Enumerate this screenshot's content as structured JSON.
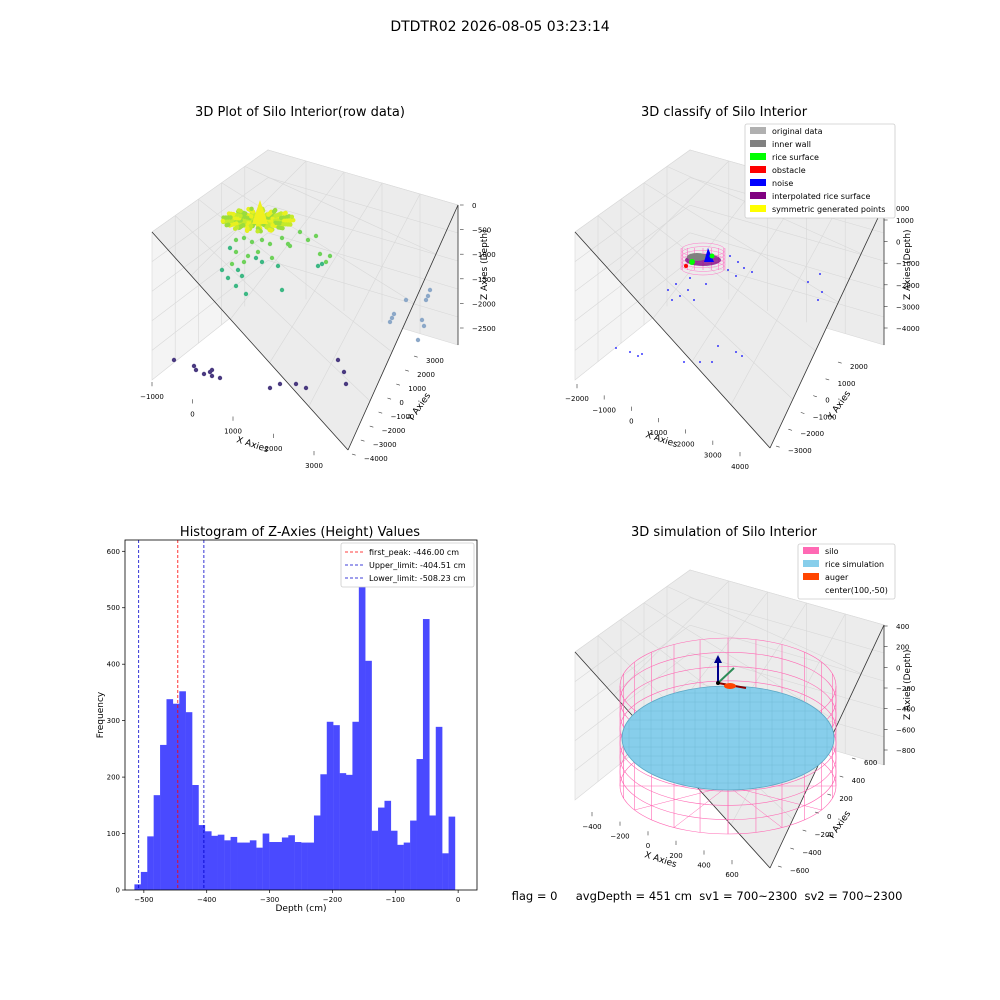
{
  "figure": {
    "suptitle": "DTDTR02 2026-08-05 03:23:14",
    "footer": "flag = 0     avgDepth = 451 cm  sv1 = 700~2300  sv2 = 700~2300"
  },
  "colors": {
    "hist_bar": "#4a4aff",
    "first_peak": "#ff0000",
    "limits": "#0000cc",
    "silo": "#ff69b4",
    "rice_simulation": "#87ceeb",
    "auger": "#ff4500",
    "original_data": "#b0b0b0",
    "inner_wall": "#808080",
    "rice_surface": "#00ff00",
    "obstacle": "#ff0000",
    "noise": "#0000ff",
    "interpolated_rice_surface": "#800080",
    "symmetric_generated_points": "#ffff00"
  },
  "chart_data": [
    {
      "type": "scatter",
      "title": "3D Plot of Silo Interior(row data)",
      "xlabel": "X Axies",
      "ylabel": "Y Axies",
      "zlabel": "Z Axies (Depth)",
      "xticks": [
        "−1000",
        "0",
        "1000",
        "2000",
        "3000"
      ],
      "yticks": [
        "−4000",
        "−3000",
        "−2000",
        "−1000",
        "0",
        "1000",
        "2000",
        "3000"
      ],
      "zticks": [
        "−2500",
        "−2000",
        "−1500",
        "−1000",
        "−500",
        "0"
      ]
    },
    {
      "type": "scatter",
      "title": "3D classify of Silo Interior",
      "xlabel": "X Axies",
      "ylabel": "Y Axies",
      "zlabel": "Z Axies (Depth)",
      "xticks": [
        "−2000",
        "−1000",
        "0",
        "1000",
        "2000",
        "3000",
        "4000"
      ],
      "yticks": [
        "−3000",
        "−2000",
        "−1000",
        "0",
        "1000",
        "2000"
      ],
      "zticks": [
        "−4000",
        "−3000",
        "−2000",
        "−1000",
        "0",
        "1000"
      ],
      "zticks_partial": [
        "000"
      ],
      "legend": {
        "placement": "top-right",
        "items": [
          {
            "label": "original data",
            "color": "#b0b0b0"
          },
          {
            "label": "inner wall",
            "color": "#808080"
          },
          {
            "label": "rice surface",
            "color": "#00ff00"
          },
          {
            "label": "obstacle",
            "color": "#ff0000"
          },
          {
            "label": "noise",
            "color": "#0000ff"
          },
          {
            "label": "interpolated rice surface",
            "color": "#800080"
          },
          {
            "label": "symmetric generated points",
            "color": "#ffff00"
          }
        ]
      }
    },
    {
      "type": "bar",
      "title": "Histogram of Z-Axies (Height) Values",
      "xlabel": "Depth (cm)",
      "ylabel": "Frequency",
      "xlim": [
        -530,
        30
      ],
      "ylim": [
        0,
        620
      ],
      "xticks": [
        -500,
        -400,
        -300,
        -200,
        -100,
        0
      ],
      "xtick_labels": [
        "−500",
        "−400",
        "−300",
        "−200",
        "−100",
        "0"
      ],
      "yticks": [
        0,
        100,
        200,
        300,
        400,
        500,
        600
      ],
      "bin_width": 10.2,
      "bin_start": -515,
      "values": [
        10,
        32,
        95,
        168,
        257,
        338,
        330,
        352,
        315,
        186,
        115,
        104,
        96,
        98,
        88,
        94,
        84,
        84,
        88,
        75,
        100,
        85,
        85,
        93,
        97,
        85,
        84,
        84,
        132,
        205,
        298,
        292,
        207,
        204,
        298,
        583,
        406,
        105,
        146,
        158,
        105,
        80,
        84,
        123,
        232,
        480,
        132,
        289,
        65,
        130
      ],
      "lines": [
        {
          "label": "first_peak: -446.00 cm",
          "x": -446.0,
          "color": "#ff0000"
        },
        {
          "label": "Upper_limit: -404.51 cm",
          "x": -404.51,
          "color": "#0000cc"
        },
        {
          "label": "Lower_limit: -508.23 cm",
          "x": -508.23,
          "color": "#0000cc"
        }
      ],
      "legend": {
        "placement": "top-right"
      }
    },
    {
      "type": "scatter",
      "title": "3D simulation of Silo Interior",
      "xlabel": "X Axies",
      "ylabel": "Y Axies",
      "zlabel": "Z Axies (Depth)",
      "xticks": [
        "−400",
        "−200",
        "0",
        "200",
        "400",
        "600"
      ],
      "yticks": [
        "−600",
        "−400",
        "−200",
        "0",
        "200",
        "400",
        "600"
      ],
      "zticks": [
        "−800",
        "−600",
        "−400",
        "−200",
        "0",
        "200",
        "400"
      ],
      "legend": {
        "placement": "top-right",
        "items": [
          {
            "label": "silo",
            "color": "#ff69b4"
          },
          {
            "label": "rice simulation",
            "color": "#87ceeb"
          },
          {
            "label": "auger",
            "color": "#ff4500"
          },
          {
            "label": "center(100,-50)",
            "color": ""
          }
        ]
      }
    }
  ]
}
